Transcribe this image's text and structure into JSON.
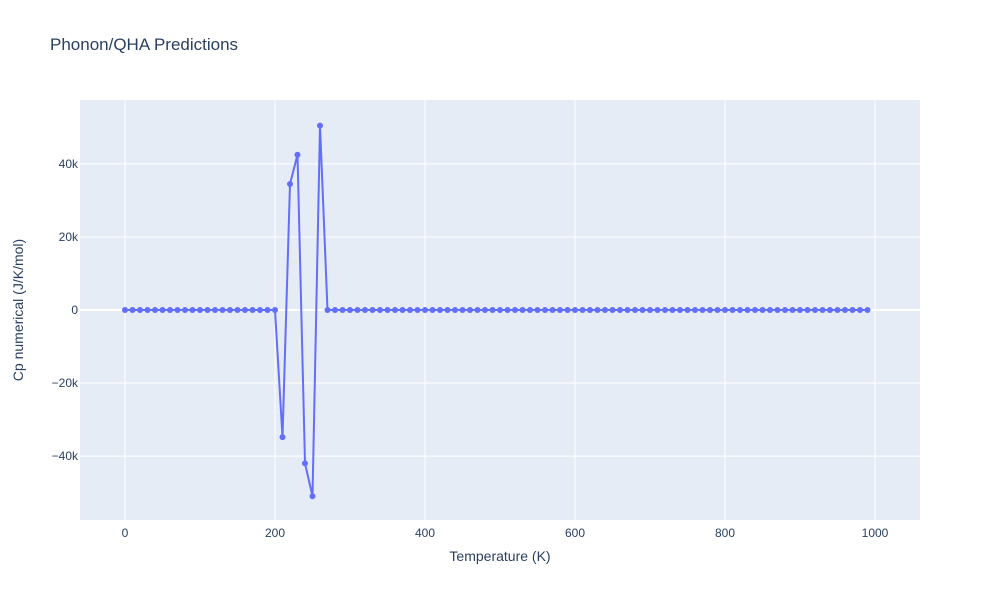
{
  "chart_data": {
    "type": "line",
    "title": "Phonon/QHA Predictions",
    "xlabel": "Temperature (K)",
    "ylabel": "Cp numerical (J/K/mol)",
    "xlim": [
      -60,
      1060
    ],
    "ylim": [
      -57500,
      57500
    ],
    "xticks": [
      0,
      200,
      400,
      600,
      800,
      1000
    ],
    "xtick_labels": [
      "0",
      "200",
      "400",
      "600",
      "800",
      "1000"
    ],
    "yticks": [
      -40000,
      -20000,
      0,
      20000,
      40000
    ],
    "ytick_labels": [
      "−40k",
      "−20k",
      "0",
      "20k",
      "40k"
    ],
    "grid": true,
    "colors": {
      "line": "#636efa",
      "plot_bg": "#e5ecf6",
      "grid": "#ffffff",
      "text": "#2a3f5f"
    },
    "series": [
      {
        "mode": "lines+markers",
        "x": [
          0,
          10,
          20,
          30,
          40,
          50,
          60,
          70,
          80,
          90,
          100,
          110,
          120,
          130,
          140,
          150,
          160,
          170,
          180,
          190,
          200,
          210,
          220,
          230,
          240,
          250,
          260,
          270,
          280,
          290,
          300,
          310,
          320,
          330,
          340,
          350,
          360,
          370,
          380,
          390,
          400,
          410,
          420,
          430,
          440,
          450,
          460,
          470,
          480,
          490,
          500,
          510,
          520,
          530,
          540,
          550,
          560,
          570,
          580,
          590,
          600,
          610,
          620,
          630,
          640,
          650,
          660,
          670,
          680,
          690,
          700,
          710,
          720,
          730,
          740,
          750,
          760,
          770,
          780,
          790,
          800,
          810,
          820,
          830,
          840,
          850,
          860,
          870,
          880,
          890,
          900,
          910,
          920,
          930,
          940,
          950,
          960,
          970,
          980,
          990
        ],
        "y": [
          0,
          0,
          0,
          0,
          0,
          0,
          0,
          0,
          0,
          0,
          0,
          0,
          0,
          0,
          0,
          0,
          0,
          0,
          0,
          0,
          0,
          -34800,
          34500,
          42500,
          -42000,
          -51000,
          50500,
          0,
          0,
          0,
          0,
          0,
          0,
          0,
          0,
          0,
          0,
          0,
          0,
          0,
          0,
          0,
          0,
          0,
          0,
          0,
          0,
          0,
          0,
          0,
          0,
          0,
          0,
          0,
          0,
          0,
          0,
          0,
          0,
          0,
          0,
          0,
          0,
          0,
          0,
          0,
          0,
          0,
          0,
          0,
          0,
          0,
          0,
          0,
          0,
          0,
          0,
          0,
          0,
          0,
          0,
          0,
          0,
          0,
          0,
          0,
          0,
          0,
          0,
          0,
          0,
          0,
          0,
          0,
          0,
          0,
          0,
          0,
          0,
          0
        ]
      }
    ]
  }
}
